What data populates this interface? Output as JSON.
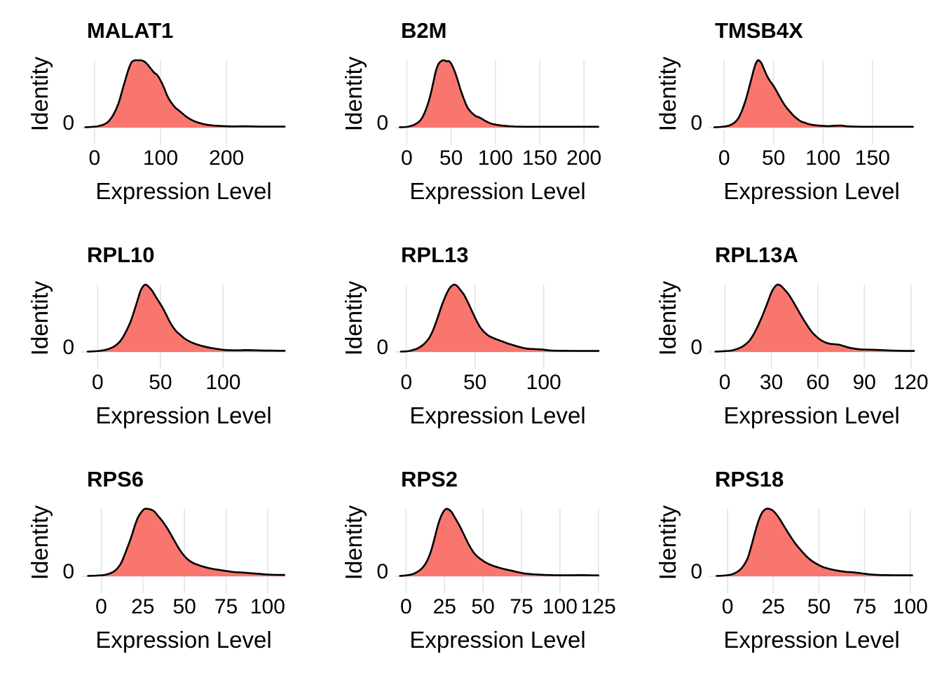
{
  "figure": {
    "kind": "ridge-density-grid",
    "rows": 3,
    "cols": 3,
    "x_axis_label": "Expression Level",
    "y_axis_label": "Identity",
    "y_tick_label": "0"
  },
  "style": {
    "fill_color": "#F8766D",
    "line_color": "#000000",
    "grid_color": "#E4E4E4",
    "text_color": "#000000",
    "background": "#FFFFFF"
  },
  "chart_data": [
    {
      "type": "area",
      "title": "MALAT1",
      "xlabel": "Expression Level",
      "ylabel": "Identity",
      "yticks": [
        "0"
      ],
      "xticks": [
        0,
        100,
        200
      ],
      "xlim": [
        -20,
        290
      ],
      "grid": "vertical-major",
      "legend": "none",
      "series": [
        {
          "name": "density",
          "x": [
            -14,
            -5,
            5,
            15,
            22,
            29,
            36,
            42,
            47,
            51,
            54,
            57,
            61,
            65,
            70,
            74,
            77,
            81,
            85,
            90,
            95,
            100,
            105,
            109,
            113,
            118,
            122,
            127,
            132,
            138,
            144,
            150,
            157,
            164,
            172,
            180,
            190,
            200,
            212,
            225,
            238,
            250,
            262,
            275,
            288
          ],
          "y": [
            0.005,
            0.01,
            0.02,
            0.05,
            0.1,
            0.2,
            0.35,
            0.55,
            0.72,
            0.85,
            0.93,
            0.98,
            1.0,
            1.0,
            1.0,
            0.99,
            0.97,
            0.93,
            0.88,
            0.82,
            0.78,
            0.7,
            0.6,
            0.5,
            0.42,
            0.35,
            0.3,
            0.26,
            0.22,
            0.17,
            0.13,
            0.1,
            0.075,
            0.055,
            0.04,
            0.03,
            0.025,
            0.02,
            0.018,
            0.02,
            0.018,
            0.015,
            0.015,
            0.015,
            0.015
          ]
        }
      ]
    },
    {
      "type": "area",
      "title": "B2M",
      "xlabel": "Expression Level",
      "ylabel": "Identity",
      "yticks": [
        "0"
      ],
      "xticks": [
        0,
        50,
        100,
        150,
        200
      ],
      "xlim": [
        -13,
        218
      ],
      "grid": "vertical-major",
      "legend": "none",
      "series": [
        {
          "name": "density",
          "x": [
            -8,
            0,
            6,
            11,
            16,
            21,
            26,
            30,
            33,
            36,
            39,
            42,
            45,
            47,
            49,
            52,
            55,
            58,
            61,
            64,
            67,
            70,
            74,
            78,
            82,
            86,
            90,
            95,
            100,
            107,
            114,
            122,
            132,
            145,
            160,
            175,
            190,
            205,
            216
          ],
          "y": [
            0.005,
            0.01,
            0.03,
            0.06,
            0.12,
            0.25,
            0.45,
            0.68,
            0.85,
            0.95,
            0.99,
            1.0,
            0.985,
            0.99,
            0.97,
            0.9,
            0.8,
            0.68,
            0.55,
            0.44,
            0.34,
            0.27,
            0.21,
            0.17,
            0.15,
            0.12,
            0.09,
            0.06,
            0.045,
            0.03,
            0.022,
            0.016,
            0.013,
            0.012,
            0.012,
            0.012,
            0.012,
            0.012,
            0.012
          ]
        }
      ]
    },
    {
      "type": "area",
      "title": "TMSB4X",
      "xlabel": "Expression Level",
      "ylabel": "Identity",
      "yticks": [
        "0"
      ],
      "xticks": [
        0,
        50,
        100,
        150
      ],
      "xlim": [
        -15,
        192
      ],
      "grid": "vertical-major",
      "legend": "none",
      "series": [
        {
          "name": "density",
          "x": [
            -10,
            -3,
            5,
            10,
            14,
            18,
            22,
            25,
            28,
            30,
            32,
            34,
            36,
            38,
            40,
            43,
            46,
            49,
            52,
            55,
            58,
            61,
            64,
            67,
            70,
            74,
            78,
            82,
            86,
            90,
            95,
            100,
            106,
            112,
            118,
            124,
            132,
            142,
            155,
            170,
            185,
            191
          ],
          "y": [
            0.005,
            0.01,
            0.03,
            0.07,
            0.13,
            0.25,
            0.42,
            0.58,
            0.75,
            0.86,
            0.95,
            1.0,
            0.99,
            0.95,
            0.88,
            0.78,
            0.7,
            0.64,
            0.57,
            0.49,
            0.41,
            0.34,
            0.28,
            0.23,
            0.18,
            0.13,
            0.09,
            0.07,
            0.05,
            0.04,
            0.03,
            0.025,
            0.022,
            0.028,
            0.03,
            0.02,
            0.015,
            0.012,
            0.012,
            0.012,
            0.012,
            0.012
          ]
        }
      ]
    },
    {
      "type": "area",
      "title": "RPL10",
      "xlabel": "Expression Level",
      "ylabel": "Identity",
      "yticks": [
        "0"
      ],
      "xticks": [
        0,
        50,
        100
      ],
      "xlim": [
        -13,
        150
      ],
      "grid": "vertical-major",
      "legend": "none",
      "series": [
        {
          "name": "density",
          "x": [
            -8,
            -2,
            3,
            8,
            13,
            18,
            22,
            26,
            29,
            32,
            34,
            36,
            38,
            40,
            43,
            46,
            49,
            52,
            55,
            58,
            62,
            66,
            70,
            75,
            80,
            85,
            90,
            95,
            100,
            106,
            112,
            118,
            124,
            130,
            137,
            144,
            149
          ],
          "y": [
            0.005,
            0.01,
            0.02,
            0.04,
            0.08,
            0.16,
            0.28,
            0.44,
            0.6,
            0.78,
            0.9,
            0.97,
            1.0,
            0.98,
            0.92,
            0.83,
            0.74,
            0.65,
            0.54,
            0.43,
            0.32,
            0.25,
            0.19,
            0.14,
            0.105,
            0.08,
            0.06,
            0.045,
            0.032,
            0.026,
            0.024,
            0.028,
            0.026,
            0.022,
            0.02,
            0.018,
            0.018
          ]
        }
      ]
    },
    {
      "type": "area",
      "title": "RPL13",
      "xlabel": "Expression Level",
      "ylabel": "Identity",
      "yticks": [
        "0"
      ],
      "xticks": [
        0,
        50,
        100
      ],
      "xlim": [
        -8,
        141
      ],
      "grid": "vertical-major",
      "legend": "none",
      "series": [
        {
          "name": "density",
          "x": [
            -4,
            1,
            5,
            9,
            13,
            17,
            20,
            23,
            26,
            29,
            31,
            33,
            35,
            37,
            39,
            42,
            45,
            48,
            51,
            54,
            57,
            60,
            63,
            66,
            70,
            74,
            78,
            82,
            86,
            90,
            94,
            99,
            105,
            112,
            120,
            128,
            136,
            140
          ],
          "y": [
            0.005,
            0.01,
            0.03,
            0.06,
            0.12,
            0.22,
            0.35,
            0.52,
            0.7,
            0.85,
            0.93,
            0.98,
            1.0,
            0.98,
            0.93,
            0.85,
            0.73,
            0.6,
            0.47,
            0.36,
            0.29,
            0.24,
            0.21,
            0.185,
            0.155,
            0.125,
            0.1,
            0.075,
            0.055,
            0.045,
            0.042,
            0.035,
            0.022,
            0.018,
            0.016,
            0.015,
            0.015,
            0.015
          ]
        }
      ]
    },
    {
      "type": "area",
      "title": "RPL13A",
      "xlabel": "Expression Level",
      "ylabel": "Identity",
      "yticks": [
        "0"
      ],
      "xticks": [
        0,
        30,
        60,
        90,
        120
      ],
      "xlim": [
        -10,
        122
      ],
      "grid": "vertical-major",
      "legend": "none",
      "series": [
        {
          "name": "density",
          "x": [
            -6,
            -1,
            4,
            8,
            12,
            16,
            19,
            22,
            25,
            28,
            30,
            32,
            34,
            36,
            38,
            41,
            44,
            47,
            50,
            53,
            56,
            59,
            62,
            65,
            68,
            71,
            74,
            77,
            80,
            84,
            88,
            92,
            96,
            101,
            106,
            112,
            118,
            122
          ],
          "y": [
            0.005,
            0.01,
            0.02,
            0.045,
            0.09,
            0.17,
            0.28,
            0.42,
            0.58,
            0.76,
            0.88,
            0.96,
            1.0,
            0.985,
            0.94,
            0.86,
            0.75,
            0.63,
            0.51,
            0.4,
            0.3,
            0.23,
            0.175,
            0.14,
            0.12,
            0.115,
            0.105,
            0.085,
            0.065,
            0.048,
            0.038,
            0.034,
            0.032,
            0.028,
            0.022,
            0.018,
            0.015,
            0.015
          ]
        }
      ]
    },
    {
      "type": "area",
      "title": "RPS6",
      "xlabel": "Expression Level",
      "ylabel": "Identity",
      "yticks": [
        "0"
      ],
      "xticks": [
        0,
        25,
        50,
        75,
        100
      ],
      "xlim": [
        -12,
        111
      ],
      "grid": "vertical-major",
      "legend": "none",
      "series": [
        {
          "name": "density",
          "x": [
            -8,
            -3,
            2,
            6,
            9,
            12,
            15,
            18,
            20,
            22,
            24,
            26,
            28,
            30,
            32,
            34,
            37,
            40,
            43,
            46,
            49,
            52,
            55,
            58,
            61,
            64,
            68,
            72,
            76,
            80,
            85,
            90,
            95,
            100,
            105,
            110
          ],
          "y": [
            0.005,
            0.01,
            0.02,
            0.05,
            0.1,
            0.2,
            0.38,
            0.58,
            0.74,
            0.87,
            0.95,
            1.0,
            1.0,
            0.99,
            0.96,
            0.9,
            0.81,
            0.7,
            0.57,
            0.44,
            0.33,
            0.25,
            0.2,
            0.17,
            0.145,
            0.125,
            0.105,
            0.09,
            0.075,
            0.062,
            0.055,
            0.045,
            0.035,
            0.026,
            0.021,
            0.02
          ]
        }
      ]
    },
    {
      "type": "area",
      "title": "RPS2",
      "xlabel": "Expression Level",
      "ylabel": "Identity",
      "yticks": [
        "0"
      ],
      "xticks": [
        0,
        25,
        50,
        75,
        100,
        125
      ],
      "xlim": [
        -7,
        126
      ],
      "grid": "vertical-major",
      "legend": "none",
      "series": [
        {
          "name": "density",
          "x": [
            -4,
            0,
            4,
            7,
            10,
            13,
            16,
            18,
            20,
            22,
            24,
            26,
            28,
            30,
            32,
            35,
            38,
            41,
            44,
            47,
            50,
            53,
            56,
            60,
            64,
            68,
            72,
            76,
            80,
            85,
            90,
            96,
            102,
            108,
            114,
            120,
            125
          ],
          "y": [
            0.005,
            0.012,
            0.03,
            0.06,
            0.11,
            0.2,
            0.36,
            0.52,
            0.7,
            0.85,
            0.95,
            1.0,
            0.99,
            0.94,
            0.86,
            0.74,
            0.6,
            0.46,
            0.35,
            0.28,
            0.23,
            0.19,
            0.16,
            0.13,
            0.105,
            0.085,
            0.065,
            0.045,
            0.034,
            0.026,
            0.02,
            0.017,
            0.015,
            0.015,
            0.018,
            0.015,
            0.013
          ]
        }
      ]
    },
    {
      "type": "area",
      "title": "RPS18",
      "xlabel": "Expression Level",
      "ylabel": "Identity",
      "yticks": [
        "0"
      ],
      "xticks": [
        0,
        25,
        50,
        75,
        100
      ],
      "xlim": [
        -10,
        102
      ],
      "grid": "vertical-major",
      "legend": "none",
      "series": [
        {
          "name": "density",
          "x": [
            -6,
            -2,
            2,
            5,
            8,
            11,
            13,
            15,
            17,
            19,
            21,
            23,
            25,
            27,
            29,
            31,
            34,
            37,
            40,
            43,
            46,
            49,
            52,
            55,
            58,
            61,
            65,
            69,
            73,
            77,
            81,
            86,
            91,
            96,
            101
          ],
          "y": [
            0.005,
            0.01,
            0.025,
            0.06,
            0.13,
            0.27,
            0.45,
            0.65,
            0.83,
            0.95,
            1.0,
            1.0,
            0.97,
            0.91,
            0.83,
            0.74,
            0.61,
            0.49,
            0.39,
            0.3,
            0.23,
            0.18,
            0.14,
            0.115,
            0.095,
            0.08,
            0.065,
            0.058,
            0.045,
            0.03,
            0.022,
            0.018,
            0.015,
            0.015,
            0.015
          ]
        }
      ]
    }
  ]
}
